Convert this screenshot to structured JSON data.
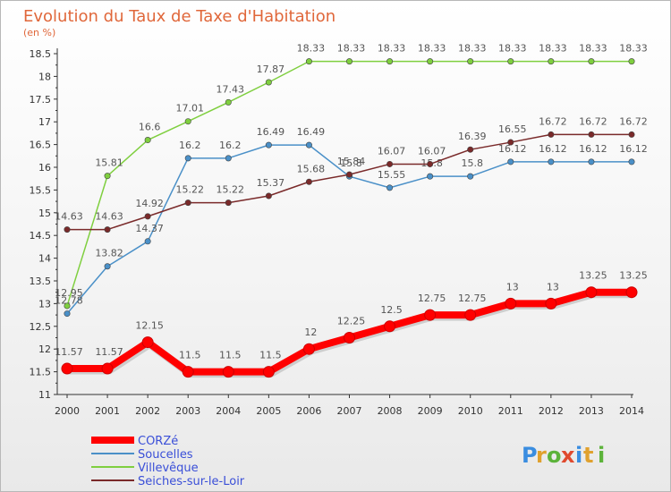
{
  "chart_data": {
    "type": "line",
    "title": "Evolution du Taux de Taxe d'Habitation",
    "subtitle": "(en %)",
    "xlabel": "",
    "ylabel": "",
    "x": [
      "2000",
      "2001",
      "2002",
      "2003",
      "2004",
      "2005",
      "2006",
      "2007",
      "2008",
      "2009",
      "2010",
      "2011",
      "2012",
      "2013",
      "2014"
    ],
    "ylim": [
      11,
      18.5
    ],
    "yticks": [
      "11",
      "11.5",
      "12",
      "12.5",
      "13",
      "13.5",
      "14",
      "14.5",
      "15",
      "15.5",
      "16",
      "16.5",
      "17",
      "17.5",
      "18",
      "18.5"
    ],
    "series": [
      {
        "name": "CORZé",
        "color": "#ff0000",
        "emphasis": true,
        "values": [
          11.57,
          11.57,
          12.15,
          11.5,
          11.5,
          11.5,
          12,
          12.25,
          12.5,
          12.75,
          12.75,
          13,
          13,
          13.25,
          13.25
        ],
        "labels": [
          "11.57",
          "11.57",
          "12.15",
          "11.5",
          "11.5",
          "11.5",
          "12",
          "12.25",
          "12.5",
          "12.75",
          "12.75",
          "13",
          "13",
          "13.25",
          "13.25"
        ]
      },
      {
        "name": "Soucelles",
        "color": "#4a90c8",
        "values": [
          12.78,
          13.82,
          14.37,
          16.2,
          16.2,
          16.49,
          16.49,
          15.8,
          15.55,
          15.8,
          15.8,
          16.12,
          16.12,
          16.12,
          16.12
        ],
        "labels": [
          "12.78",
          "13.82",
          "14.37",
          "16.2",
          "16.2",
          "16.49",
          "16.49",
          "15.8",
          "15.55",
          "15.8",
          "15.8",
          "16.12",
          "16.12",
          "16.12",
          "16.12"
        ]
      },
      {
        "name": "Villevêque",
        "color": "#7fcf3f",
        "values": [
          12.95,
          15.81,
          16.6,
          17.01,
          17.43,
          17.87,
          18.33,
          18.33,
          18.33,
          18.33,
          18.33,
          18.33,
          18.33,
          18.33,
          18.33
        ],
        "labels": [
          "12.95",
          "15.81",
          "16.6",
          "17.01",
          "17.43",
          "17.87",
          "18.33",
          "18.33",
          "18.33",
          "18.33",
          "18.33",
          "18.33",
          "18.33",
          "18.33",
          "18.33"
        ]
      },
      {
        "name": "Seiches-sur-le-Loir",
        "color": "#7a2a2a",
        "values": [
          14.63,
          14.63,
          14.92,
          15.22,
          15.22,
          15.37,
          15.68,
          15.84,
          16.07,
          16.07,
          16.39,
          16.55,
          16.72,
          16.72,
          16.72
        ],
        "labels": [
          "14.63",
          "14.63",
          "14.92",
          "15.22",
          "15.22",
          "15.37",
          "15.68",
          "15.84",
          "16.07",
          "16.07",
          "16.39",
          "16.55",
          "16.72",
          "16.72",
          "16.72"
        ]
      }
    ],
    "legend_position": "bottom-left",
    "grid": false
  },
  "logo": {
    "text": "Proxiti"
  }
}
